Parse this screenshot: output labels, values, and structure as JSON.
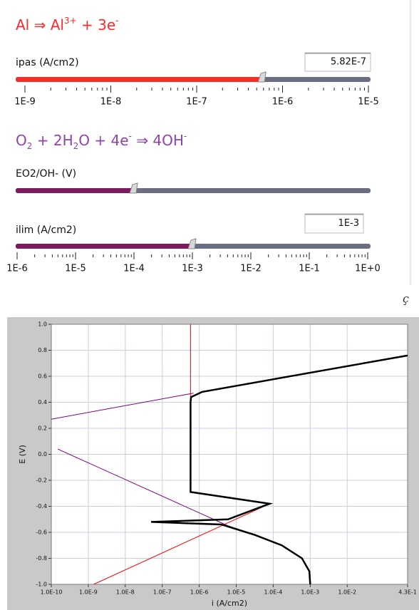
{
  "anodic_reaction": [
    {
      "text": "Al ⇒ Al"
    },
    {
      "text": "3+",
      "pos": "sup"
    },
    {
      "text": " + 3e"
    },
    {
      "text": "-",
      "pos": "sup"
    }
  ],
  "cathodic_reaction": [
    {
      "text": "O"
    },
    {
      "text": "2",
      "pos": "sub"
    },
    {
      "text": " +  2H"
    },
    {
      "text": "2",
      "pos": "sub"
    },
    {
      "text": "O + 4e"
    },
    {
      "text": "-",
      "pos": "sup"
    },
    {
      "text": " ⇒ 4OH"
    },
    {
      "text": "-",
      "pos": "sup"
    }
  ],
  "controls": [
    {
      "label": "ipas (A/cm2)",
      "value": 5.82e-07,
      "value_label": "5.82E-7",
      "color": "#f0302a",
      "scale": {
        "min": 1e-09,
        "max": 1e-05,
        "log": true,
        "ticks": [
          {
            "value": 1e-09,
            "label": "1E-9"
          },
          {
            "value": 1e-08,
            "label": "1E-8"
          },
          {
            "value": 1e-07,
            "label": "1E-7"
          },
          {
            "value": 1e-06,
            "label": "1E-6"
          },
          {
            "value": 1e-05,
            "label": "1E-5"
          }
        ]
      }
    },
    {
      "label": "EO2/OH- (V)",
      "color": "#7b1a5c"
    },
    {
      "label": "ilim (A/cm2)",
      "value": 0.001,
      "value_label": "1E-3",
      "color": "#7b1a5c",
      "scale": {
        "min": 1e-06,
        "max": 1,
        "log": true,
        "ticks": [
          {
            "value": 1e-06,
            "label": "1E-6"
          },
          {
            "value": 1e-05,
            "label": "1E-5"
          },
          {
            "value": 0.0001,
            "label": "1E-4"
          },
          {
            "value": 0.001,
            "label": "1E-3"
          },
          {
            "value": 0.01,
            "label": "1E-2"
          },
          {
            "value": 0.1,
            "label": "1E-1"
          },
          {
            "value": 1,
            "label": "1E+0"
          }
        ]
      }
    }
  ],
  "stray_text": "ç",
  "chart_data": {
    "type": "line",
    "xlabel": "i (A/cm2)",
    "ylabel": "E (V)",
    "xscale": "log",
    "grid": true,
    "xlim": [
      1e-10,
      0.43
    ],
    "ylim": [
      -1.0,
      1.0
    ],
    "xticks": [
      {
        "value": 1e-10,
        "label": "1.0E-10"
      },
      {
        "value": 1e-09,
        "label": "1.0E-9"
      },
      {
        "value": 1e-08,
        "label": "1.0E-8"
      },
      {
        "value": 1e-07,
        "label": "1.0E-7"
      },
      {
        "value": 1e-06,
        "label": "1.0E-6"
      },
      {
        "value": 1e-05,
        "label": "1.0E-5"
      },
      {
        "value": 0.0001,
        "label": "1.0E-4"
      },
      {
        "value": 0.001,
        "label": "1.0E-3"
      },
      {
        "value": 0.01,
        "label": "1.0E-2"
      },
      {
        "value": 0.43,
        "label": "4.3E-1"
      }
    ],
    "yticks": [
      {
        "value": 1.0,
        "label": "1.0"
      },
      0.8,
      0.6,
      0.4,
      0.2,
      {
        "value": 0.0,
        "label": "0.0"
      },
      -0.2,
      -0.4,
      -0.6,
      -0.8,
      {
        "value": -1.0,
        "label": "-1.0"
      }
    ],
    "series": [
      {
        "color": "#800080",
        "x": [
          1e-10,
          7e-07
        ],
        "values": [
          0.27,
          0.47
        ]
      },
      {
        "color": "#800080",
        "x": [
          1.5e-10,
          6e-06,
          3.2e-05,
          0.00017,
          0.0006,
          0.00095,
          0.001
        ],
        "values": [
          0.04,
          -0.55,
          -0.62,
          -0.7,
          -0.8,
          -0.9,
          -1.0
        ]
      },
      {
        "color": "#ff0000",
        "x": [
          1.4e-09,
          8e-05,
          5.82e-07,
          5.82e-07
        ],
        "values": [
          -1.0,
          -0.38,
          -0.29,
          1.0
        ]
      },
      {
        "color": "#000000",
        "x": [
          0.43,
          1.2e-06,
          6e-07,
          5.82e-07,
          5.82e-07,
          8e-05,
          6e-06,
          5e-08,
          4e-06,
          3.2e-05,
          0.00017,
          0.0006,
          0.00095,
          0.001
        ],
        "values": [
          0.76,
          0.48,
          0.44,
          0.4,
          -0.29,
          -0.38,
          -0.5,
          -0.52,
          -0.54,
          -0.62,
          -0.7,
          -0.8,
          -0.9,
          -1.0
        ]
      }
    ]
  }
}
